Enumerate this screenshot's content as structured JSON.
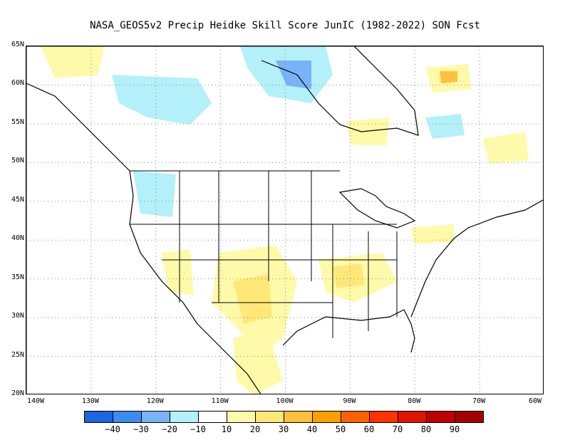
{
  "title": "NASA_GEOS5v2 Precip Heidke Skill Score JunIC (1982-2022) SON Fcst",
  "lat_labels": [
    "65N",
    "60N",
    "55N",
    "50N",
    "45N",
    "40N",
    "35N",
    "30N",
    "25N",
    "20N"
  ],
  "lon_labels": [
    "140W",
    "130W",
    "120W",
    "110W",
    "100W",
    "90W",
    "80W",
    "70W",
    "60W"
  ],
  "colorbar": {
    "labels": [
      "−40",
      "−30",
      "−20",
      "−10",
      "10",
      "20",
      "30",
      "40",
      "50",
      "60",
      "70",
      "80",
      "90"
    ],
    "colors": [
      "#1e64dc",
      "#3c8cf0",
      "#78b4f5",
      "#b4f0fa",
      "#ffffff",
      "#fffaaa",
      "#ffe878",
      "#ffc03c",
      "#ffa000",
      "#ff6000",
      "#ff3200",
      "#e11400",
      "#c00000",
      "#a50000"
    ]
  },
  "map": {
    "land_outline": "#000000",
    "gridlines": "dotted",
    "lat_range": [
      20,
      65
    ],
    "lon_range": [
      -140,
      -60
    ]
  }
}
